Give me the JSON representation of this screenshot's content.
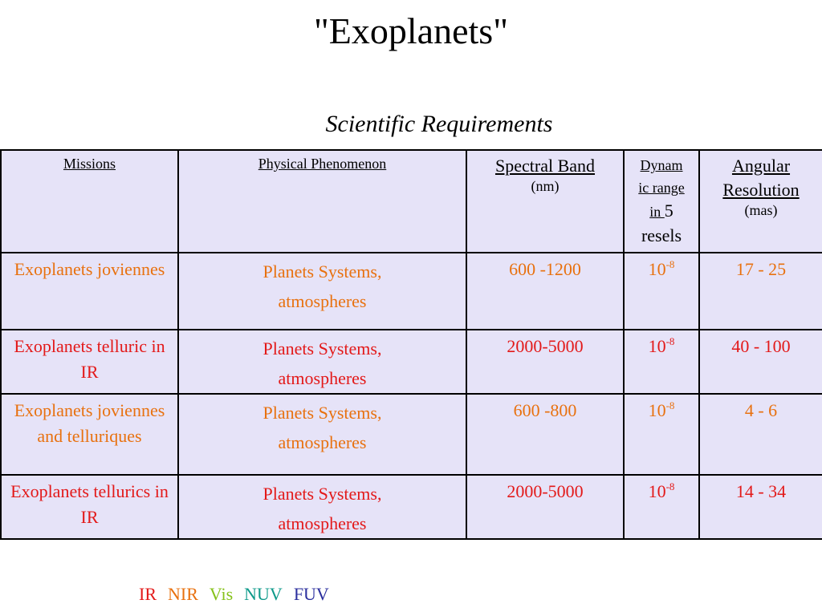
{
  "title": "\"Exoplanets\"",
  "subtitle": "Scientific Requirements",
  "table": {
    "headers": {
      "missions": "Missions",
      "phenomenon": "Physical Phenomenon",
      "spectral_band": "Spectral Band",
      "spectral_unit": "(nm)",
      "dynamic_range_a": "Dynam",
      "dynamic_range_b": "ic range",
      "dynamic_range_c": "in ",
      "dynamic_range_d": "5",
      "dynamic_range_e": "resels",
      "angular": "Angular Resolution",
      "angular_unit": "(mas)"
    },
    "rows": [
      {
        "mission": "Exoplanets joviennes",
        "phen_1": "Planets Systems,",
        "phen_2": "atmospheres",
        "band": "600 -1200",
        "dyn_base": "10",
        "dyn_exp": "-8",
        "angular": "17 - 25",
        "color": "#e8710f"
      },
      {
        "mission": "Exoplanets telluric in IR",
        "phen_1": "Planets Systems,",
        "phen_2": "atmospheres",
        "band": "2000-5000",
        "dyn_base": "10",
        "dyn_exp": "-8",
        "angular": "40 - 100",
        "color": "#e31919"
      },
      {
        "mission": "Exoplanets joviennes and telluriques",
        "phen_1": "Planets Systems,",
        "phen_2": "atmospheres",
        "band": "600 -800",
        "dyn_base": "10",
        "dyn_exp": "-8",
        "angular": "4 - 6",
        "color": "#e8710f"
      },
      {
        "mission": "Exoplanets tellurics in IR",
        "phen_1": "Planets Systems,",
        "phen_2": "atmospheres",
        "band": "2000-5000",
        "dyn_base": "10",
        "dyn_exp": "-8",
        "angular": "14 - 34",
        "color": "#e31919"
      }
    ]
  },
  "legend": [
    {
      "label": "IR",
      "color": "#e31919"
    },
    {
      "label": "NIR",
      "color": "#e8710f"
    },
    {
      "label": "Vis",
      "color": "#86c21b"
    },
    {
      "label": "NUV",
      "color": "#0e9a8a"
    },
    {
      "label": "FUV",
      "color": "#2b2f9e"
    }
  ]
}
